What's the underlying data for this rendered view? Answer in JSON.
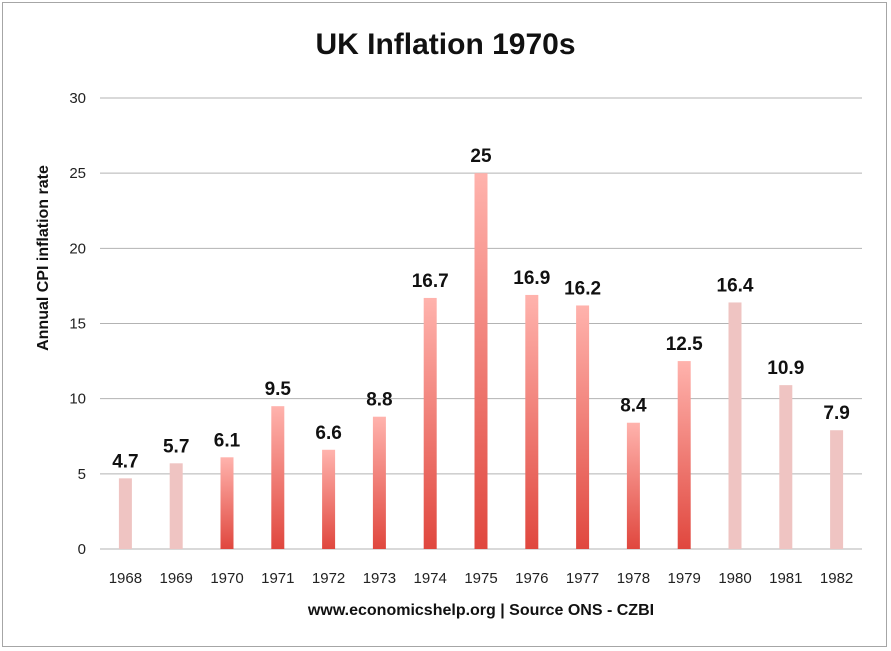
{
  "chart_data": {
    "type": "bar",
    "title": "UK Inflation 1970s",
    "xlabel": "www.economicshelp.org | Source ONS - CZBI",
    "ylabel": "Annual CPI inflation rate",
    "categories": [
      "1968",
      "1969",
      "1970",
      "1971",
      "1972",
      "1973",
      "1974",
      "1975",
      "1976",
      "1977",
      "1978",
      "1979",
      "1980",
      "1981",
      "1982"
    ],
    "values": [
      4.7,
      5.7,
      6.1,
      9.5,
      6.6,
      8.8,
      16.7,
      25,
      16.9,
      16.2,
      8.4,
      12.5,
      16.4,
      10.9,
      7.9
    ],
    "data_labels": [
      "4.7",
      "5.7",
      "6.1",
      "9.5",
      "6.6",
      "8.8",
      "16.7",
      "25",
      "16.9",
      "16.2",
      "8.4",
      "12.5",
      "16.4",
      "10.9",
      "7.9"
    ],
    "yticks": [
      "0",
      "5",
      "10",
      "15",
      "20",
      "25",
      "30"
    ],
    "ylim": [
      0,
      30
    ],
    "grid": true,
    "legend": "none",
    "colors": {
      "bar_top": "#ffb3ad",
      "bar_bottom": "#e0473e",
      "bar_pale": "#efc4c2",
      "grid": "#b3b3b3"
    },
    "pale_categories": [
      "1968",
      "1969",
      "1980",
      "1981",
      "1982"
    ]
  }
}
